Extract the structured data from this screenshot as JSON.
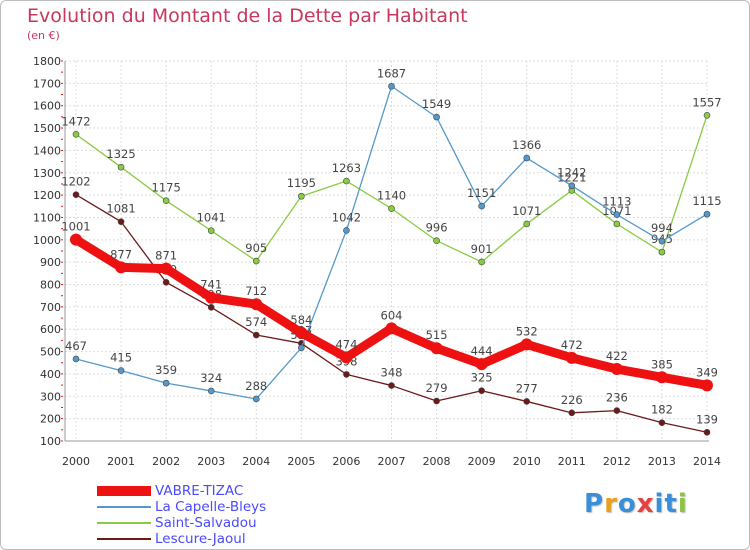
{
  "title": "Evolution du Montant de la Dette par Habitant",
  "subtitle": "(en €)",
  "logo": {
    "text": "Proxiti",
    "colors": [
      "#3a8fd8",
      "#e8a020",
      "#3a8fd8",
      "#e84040",
      "#3a8fd8",
      "#3a8fd8",
      "#8bc440"
    ]
  },
  "chart_data": {
    "type": "line",
    "x": [
      "2000",
      "2001",
      "2002",
      "2003",
      "2004",
      "2005",
      "2006",
      "2007",
      "2008",
      "2009",
      "2010",
      "2011",
      "2012",
      "2013",
      "2014"
    ],
    "ylim": [
      100,
      1800
    ],
    "yticks": [
      "100",
      "200",
      "300",
      "400",
      "500",
      "600",
      "700",
      "800",
      "900",
      "1000",
      "1100",
      "1200",
      "1300",
      "1400",
      "1500",
      "1600",
      "1700",
      "1800"
    ],
    "grid": true,
    "legend": "bottom-left",
    "series": [
      {
        "name": "Lescure-Jaoul",
        "color": "#6b1a1a",
        "values": [
          1202,
          1081,
          810,
          698,
          574,
          537,
          398,
          348,
          279,
          325,
          277,
          226,
          236,
          182,
          139
        ],
        "labels": [
          "1202",
          "1081",
          "810",
          "698",
          "574",
          "537",
          "398",
          "348",
          "279",
          "325",
          "277",
          "226",
          "236",
          "182",
          "139"
        ]
      },
      {
        "name": "Saint-Salvadou",
        "color": "#88cc44",
        "values": [
          1472,
          1325,
          1175,
          1041,
          905,
          1195,
          1263,
          1140,
          996,
          901,
          1071,
          1221,
          1071,
          945,
          1557
        ],
        "labels": [
          "1472",
          "1325",
          "1175",
          "1041",
          "905",
          "1195",
          "1263",
          "1140",
          "996",
          "901",
          "1071",
          "1221",
          "1071",
          "945",
          "1557"
        ]
      },
      {
        "name": "La Capelle-Bleys",
        "color": "#5599cc",
        "values": [
          467,
          415,
          359,
          324,
          288,
          517,
          1042,
          1687,
          1549,
          1151,
          1366,
          1242,
          1113,
          994,
          1115
        ],
        "labels": [
          "467",
          "415",
          "359",
          "324",
          "288",
          "517",
          "1042",
          "1687",
          "1549",
          "1151",
          "1366",
          "1242",
          "1113",
          "994",
          "1115"
        ]
      },
      {
        "name": "VABRE-TIZAC",
        "color": "#ee1111",
        "values": [
          1001,
          877,
          871,
          741,
          712,
          584,
          474,
          604,
          515,
          444,
          532,
          472,
          422,
          385,
          349
        ],
        "labels": [
          "1001",
          "877",
          "871",
          "741",
          "712",
          "584",
          "474",
          "604",
          "515",
          "444",
          "532",
          "472",
          "422",
          "385",
          "349"
        ]
      }
    ],
    "legend_order": [
      "VABRE-TIZAC",
      "La Capelle-Bleys",
      "Saint-Salvadou",
      "Lescure-Jaoul"
    ]
  }
}
